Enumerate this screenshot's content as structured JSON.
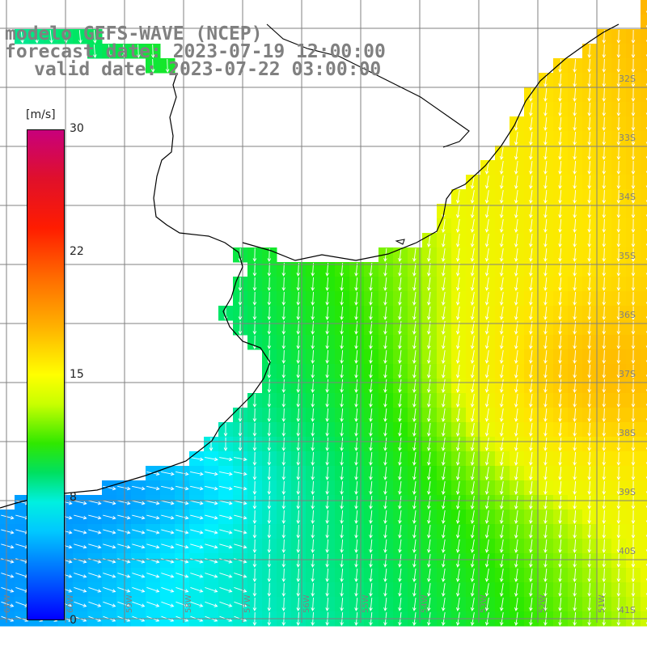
{
  "title": {
    "line1": "modelo GEFS-WAVE (NCEP)",
    "line2": "forecast date: 2023-07-19 12:00:00",
    "line3": "valid date: 2023-07-22 03:00:00"
  },
  "colorbar": {
    "unit": "[m/s]",
    "ticks": [
      "30",
      "22",
      "15",
      "8",
      "0"
    ]
  },
  "map": {
    "lat_labels": [
      "32S",
      "33S",
      "34S",
      "35S",
      "36S",
      "37S",
      "38S",
      "39S",
      "40S",
      "41S"
    ],
    "lon_labels": [
      "61W",
      "60W",
      "59W",
      "58W",
      "57W",
      "56W",
      "55W",
      "54W",
      "53W",
      "52W",
      "51W"
    ],
    "wind_range": [
      0,
      30
    ],
    "colors": {
      "land": "#ffffff",
      "grid": "#808080",
      "coast": "#000000",
      "arrow": "#ffffff",
      "title": "#808080"
    }
  }
}
